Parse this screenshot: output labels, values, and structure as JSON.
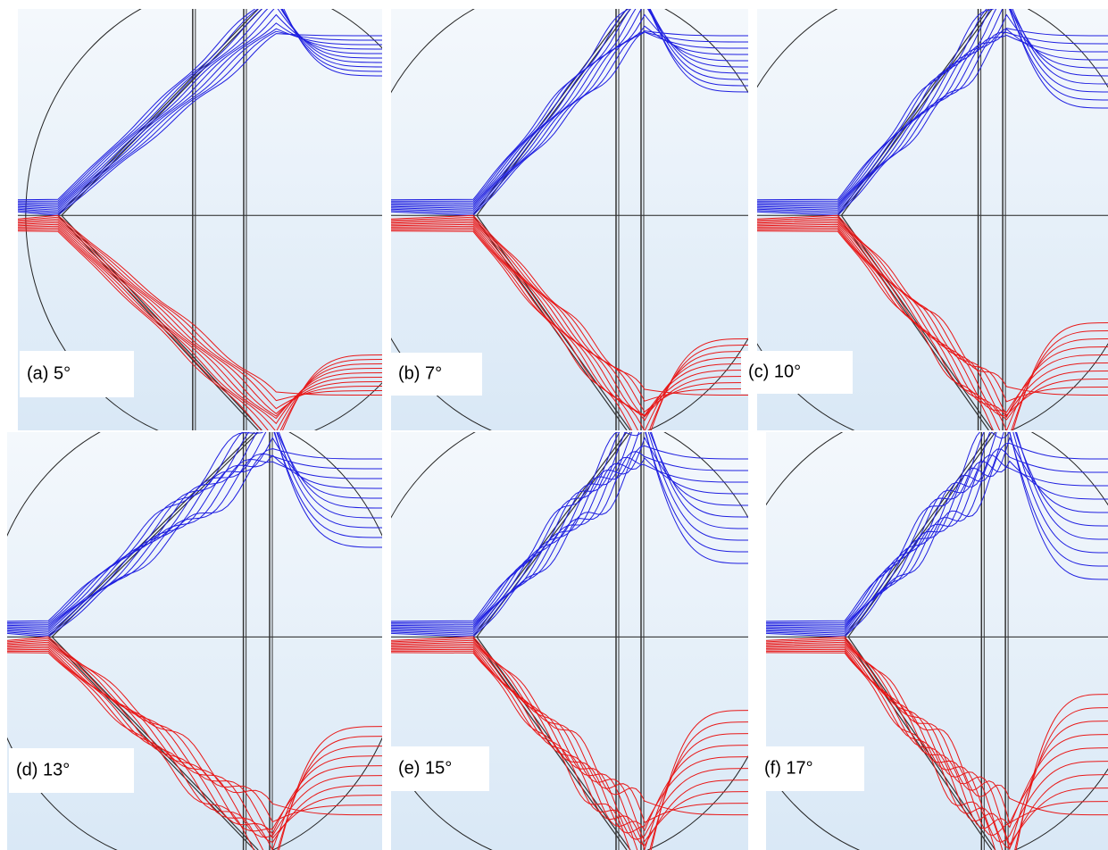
{
  "panels": [
    {
      "label": "(a) 5°"
    },
    {
      "label": "(b) 7°"
    },
    {
      "label": "(c) 10°"
    },
    {
      "label": "(d) 13°"
    },
    {
      "label": "(e) 15°"
    },
    {
      "label": "(f) 17°"
    }
  ]
}
